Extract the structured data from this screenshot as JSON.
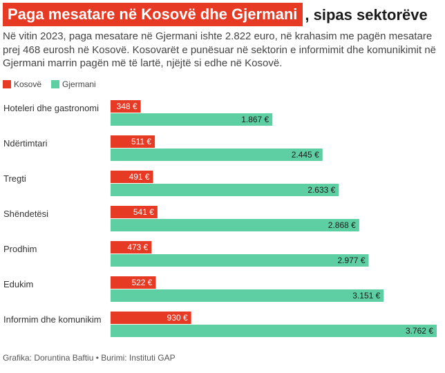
{
  "header": {
    "title_highlight": "Paga mesatare në Kosovë dhe Gjermani",
    "title_rest": ", sipas sektorëve",
    "subtitle": "Në vitin 2023, paga mesatare në Gjermani ishte 2.822 euro, në krahasim me pagën mesatare prej 468 eurosh në Kosovë. Kosovarët e punësuar në sektorin e informimit dhe komunikimit në Gjermani marrin pagën më të lartë, njëjtë si edhe në Kosovë."
  },
  "footer": {
    "text": "Grafika: Doruntina Baftiu • Burimi: Instituti GAP"
  },
  "colors": {
    "kosove": "#e63a24",
    "gjermani": "#5ecfa3"
  },
  "chart_data": {
    "type": "bar",
    "orientation": "horizontal",
    "categories": [
      "Hoteleri dhe gastronomi",
      "Ndërtimtari",
      "Tregti",
      "Shëndetësi",
      "Prodhim",
      "Edukim",
      "Informim dhe komunikim"
    ],
    "series": [
      {
        "name": "Kosovë",
        "values": [
          348,
          511,
          491,
          541,
          473,
          522,
          930
        ],
        "labels": [
          "348 €",
          "511 €",
          "491 €",
          "541 €",
          "473 €",
          "522 €",
          "930 €"
        ]
      },
      {
        "name": "Gjermani",
        "values": [
          1867,
          2445,
          2633,
          2868,
          2977,
          3151,
          3762
        ],
        "labels": [
          "1.867 €",
          "2.445 €",
          "2.633 €",
          "2.868 €",
          "2.977 €",
          "3.151 €",
          "3.762 €"
        ]
      }
    ],
    "xlim": [
      0,
      3762
    ],
    "legend": "top-left",
    "grid": false
  }
}
